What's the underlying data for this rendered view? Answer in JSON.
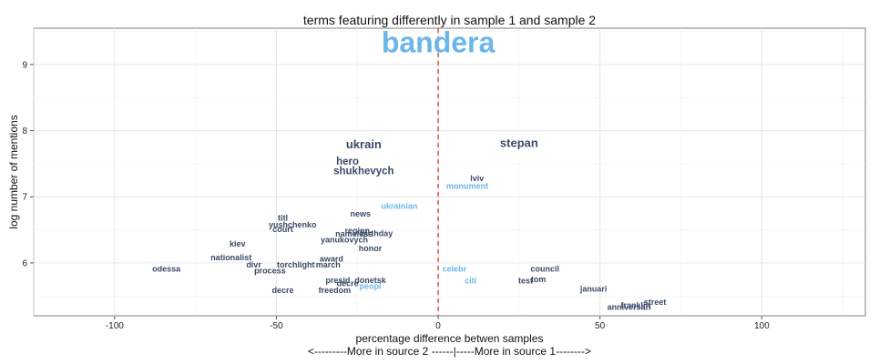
{
  "chart_data": {
    "type": "scatter",
    "title": "terms featuring differently in sample 1 and sample 2",
    "xlabel": "percentage difference betwen samples",
    "xlabel_sub": "<---------More in source 2 ------|-----More in source 1-------->",
    "ylabel": "log number of mentions",
    "xlim": [
      -125,
      132
    ],
    "ylim": [
      5.2,
      9.55
    ],
    "xticks": [
      -100,
      -50,
      0,
      50,
      100
    ],
    "yticks": [
      6,
      7,
      8,
      9
    ],
    "xtick_labels": [
      "-100",
      "-50",
      "0",
      "50",
      "100"
    ],
    "ytick_labels": [
      "6",
      "7",
      "8",
      "9"
    ],
    "grid": true,
    "reference_line": {
      "x": 0,
      "color": "#e31a1c",
      "style": "dashed"
    },
    "colors": {
      "dark": "#3b4a66",
      "light": "#6cb6ea",
      "grid": "#e6e6e6"
    },
    "points": [
      {
        "label": "bandera",
        "x": 0,
        "y": 9.3,
        "size": "xl",
        "color": "light"
      },
      {
        "label": "ukrain",
        "x": -23,
        "y": 7.78,
        "size": "l",
        "color": "dark"
      },
      {
        "label": "stepan",
        "x": 25,
        "y": 7.8,
        "size": "l",
        "color": "dark"
      },
      {
        "label": "hero",
        "x": -28,
        "y": 7.53,
        "size": "m",
        "color": "dark"
      },
      {
        "label": "shukhevych",
        "x": -23,
        "y": 7.38,
        "size": "m",
        "color": "dark"
      },
      {
        "label": "lviv",
        "x": 12,
        "y": 7.27,
        "size": "s",
        "color": "dark"
      },
      {
        "label": "monument",
        "x": 9,
        "y": 7.15,
        "size": "s",
        "color": "light"
      },
      {
        "label": "ukrainian",
        "x": -12,
        "y": 6.85,
        "size": "s",
        "color": "light"
      },
      {
        "label": "news",
        "x": -24,
        "y": 6.73,
        "size": "s",
        "color": "dark"
      },
      {
        "label": "titl",
        "x": -48,
        "y": 6.67,
        "size": "s",
        "color": "dark"
      },
      {
        "label": "yushchenko",
        "x": -45,
        "y": 6.57,
        "size": "s",
        "color": "dark"
      },
      {
        "label": "court",
        "x": -48,
        "y": 6.5,
        "size": "s",
        "color": "dark"
      },
      {
        "label": "region",
        "x": -25,
        "y": 6.48,
        "size": "s",
        "color": "dark"
      },
      {
        "label": "nameless",
        "x": -26,
        "y": 6.43,
        "size": "s",
        "color": "dark"
      },
      {
        "label": "birthday",
        "x": -19,
        "y": 6.44,
        "size": "s",
        "color": "dark"
      },
      {
        "label": "yanukovych",
        "x": -29,
        "y": 6.34,
        "size": "s",
        "color": "dark"
      },
      {
        "label": "kiev",
        "x": -62,
        "y": 6.28,
        "size": "s",
        "color": "dark"
      },
      {
        "label": "honor",
        "x": -21,
        "y": 6.21,
        "size": "s",
        "color": "dark"
      },
      {
        "label": "nationalist",
        "x": -64,
        "y": 6.07,
        "size": "s",
        "color": "dark"
      },
      {
        "label": "award",
        "x": -33,
        "y": 6.05,
        "size": "s",
        "color": "dark"
      },
      {
        "label": "divr",
        "x": -57,
        "y": 5.96,
        "size": "s",
        "color": "dark"
      },
      {
        "label": "torchlight",
        "x": -44,
        "y": 5.96,
        "size": "s",
        "color": "dark"
      },
      {
        "label": "march",
        "x": -34,
        "y": 5.96,
        "size": "s",
        "color": "dark"
      },
      {
        "label": "odessa",
        "x": -84,
        "y": 5.9,
        "size": "s",
        "color": "dark"
      },
      {
        "label": "process",
        "x": -52,
        "y": 5.87,
        "size": "s",
        "color": "dark"
      },
      {
        "label": "celebr",
        "x": 5,
        "y": 5.9,
        "size": "s",
        "color": "light"
      },
      {
        "label": "council",
        "x": 33,
        "y": 5.9,
        "size": "s",
        "color": "dark"
      },
      {
        "label": "presid",
        "x": -31,
        "y": 5.73,
        "size": "s",
        "color": "dark"
      },
      {
        "label": "donetsk",
        "x": -21,
        "y": 5.73,
        "size": "s",
        "color": "dark"
      },
      {
        "label": "decre",
        "x": -28,
        "y": 5.68,
        "size": "s",
        "color": "dark"
      },
      {
        "label": "peopl",
        "x": -21,
        "y": 5.64,
        "size": "s",
        "color": "light"
      },
      {
        "label": "citi",
        "x": 10,
        "y": 5.72,
        "size": "s",
        "color": "light"
      },
      {
        "label": "test",
        "x": 27,
        "y": 5.72,
        "size": "s",
        "color": "dark"
      },
      {
        "label": "tom",
        "x": 31,
        "y": 5.74,
        "size": "s",
        "color": "dark"
      },
      {
        "label": "decre",
        "x": -48,
        "y": 5.58,
        "size": "s",
        "color": "dark"
      },
      {
        "label": "freedom",
        "x": -32,
        "y": 5.58,
        "size": "s",
        "color": "dark"
      },
      {
        "label": "januari",
        "x": 48,
        "y": 5.6,
        "size": "s",
        "color": "dark"
      },
      {
        "label": "street",
        "x": 67,
        "y": 5.4,
        "size": "s",
        "color": "dark"
      },
      {
        "label": "franklin",
        "x": 61,
        "y": 5.35,
        "size": "s",
        "color": "dark"
      },
      {
        "label": "anniversari",
        "x": 59,
        "y": 5.32,
        "size": "s",
        "color": "dark"
      }
    ]
  }
}
